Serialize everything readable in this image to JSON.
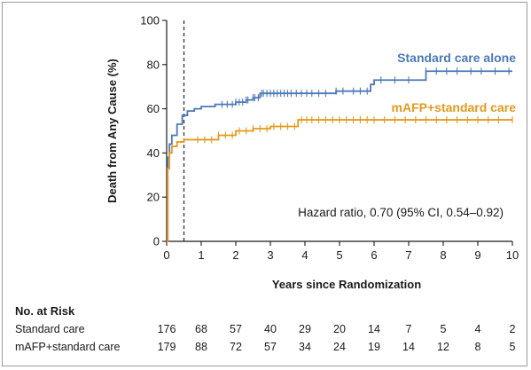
{
  "chart_data": {
    "type": "line",
    "title": "",
    "xlabel": "Years since Randomization",
    "ylabel": "Death from Any Cause (%)",
    "xlim": [
      0,
      10
    ],
    "ylim": [
      0,
      100
    ],
    "x_ticks": [
      0,
      1,
      2,
      3,
      4,
      5,
      6,
      7,
      8,
      9,
      10
    ],
    "y_ticks": [
      0,
      20,
      40,
      60,
      80,
      100
    ],
    "grid": false,
    "reference_line": {
      "x": 0.5,
      "style": "dashed"
    },
    "annotation": "Hazard ratio, 0.70 (95% CI, 0.54–0.92)",
    "series": [
      {
        "name": "Standard care alone",
        "color": "#4a7ab8",
        "points": [
          [
            0,
            0
          ],
          [
            0.03,
            38
          ],
          [
            0.08,
            44
          ],
          [
            0.15,
            48
          ],
          [
            0.3,
            53
          ],
          [
            0.45,
            57
          ],
          [
            0.6,
            59
          ],
          [
            0.8,
            60
          ],
          [
            1.0,
            61
          ],
          [
            1.4,
            62
          ],
          [
            1.8,
            62
          ],
          [
            2.0,
            63
          ],
          [
            2.3,
            64
          ],
          [
            2.5,
            65
          ],
          [
            2.7,
            67
          ],
          [
            3.0,
            67
          ],
          [
            3.5,
            67
          ],
          [
            4.0,
            67
          ],
          [
            4.5,
            67
          ],
          [
            4.9,
            68
          ],
          [
            5.5,
            68
          ],
          [
            5.9,
            71
          ],
          [
            6.0,
            73
          ],
          [
            7.0,
            73
          ],
          [
            7.5,
            77
          ],
          [
            8.0,
            77
          ],
          [
            10.0,
            77
          ]
        ],
        "censor_x": [
          1.6,
          1.75,
          1.9,
          2.0,
          2.1,
          2.2,
          2.3,
          2.35,
          2.5,
          2.55,
          2.65,
          2.75,
          2.8,
          2.9,
          3.0,
          3.1,
          3.2,
          3.3,
          3.4,
          3.5,
          3.6,
          3.75,
          3.9,
          4.05,
          4.2,
          4.4,
          4.6,
          4.9,
          5.1,
          5.4,
          5.6,
          5.8,
          6.2,
          6.6,
          7.0,
          7.5,
          7.8,
          8.1,
          8.4,
          8.8,
          9.1,
          9.5,
          9.9
        ]
      },
      {
        "name": "mAFP+standard care",
        "color": "#e39a20",
        "points": [
          [
            0,
            0
          ],
          [
            0.03,
            33
          ],
          [
            0.08,
            40
          ],
          [
            0.15,
            43
          ],
          [
            0.3,
            45
          ],
          [
            0.5,
            46
          ],
          [
            1.0,
            46
          ],
          [
            1.5,
            48
          ],
          [
            2.0,
            50
          ],
          [
            2.5,
            51
          ],
          [
            3.0,
            52
          ],
          [
            3.6,
            52
          ],
          [
            3.8,
            55
          ],
          [
            4.5,
            55
          ],
          [
            5.0,
            55
          ],
          [
            10.0,
            55
          ]
        ],
        "censor_x": [
          0.9,
          1.1,
          1.3,
          1.5,
          1.7,
          1.9,
          2.1,
          2.3,
          2.5,
          2.7,
          2.9,
          3.1,
          3.3,
          3.5,
          3.7,
          3.9,
          4.05,
          4.2,
          4.4,
          4.6,
          4.8,
          5.0,
          5.2,
          5.4,
          5.6,
          5.8,
          6.0,
          6.3,
          6.6,
          6.9,
          7.2,
          7.5,
          7.8,
          8.1,
          8.4,
          8.7,
          9.0,
          9.3,
          9.6,
          10.0
        ]
      }
    ]
  },
  "risk_table": {
    "title": "No. at Risk",
    "times": [
      0,
      1,
      2,
      3,
      4,
      5,
      6,
      7,
      8,
      9,
      10
    ],
    "rows": [
      {
        "label": "Standard care",
        "values": [
          "176",
          "68",
          "57",
          "40",
          "29",
          "20",
          "14",
          "7",
          "5",
          "4",
          "2"
        ]
      },
      {
        "label": "mAFP+standard care",
        "values": [
          "179",
          "88",
          "72",
          "57",
          "34",
          "24",
          "19",
          "14",
          "12",
          "8",
          "5"
        ]
      }
    ]
  }
}
